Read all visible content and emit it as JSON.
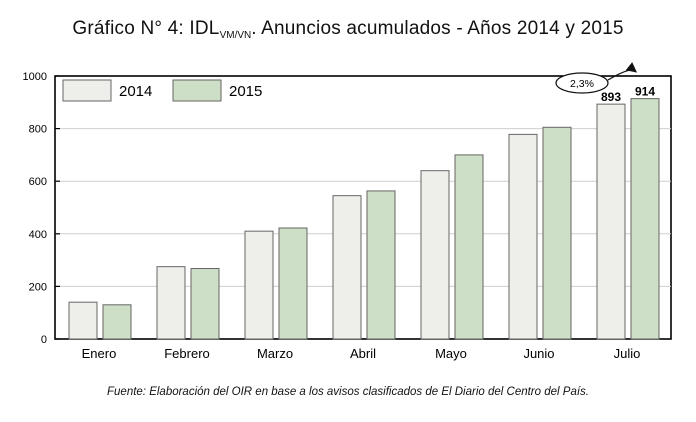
{
  "chart_data": {
    "type": "bar",
    "title": {
      "prefix": "Gráfico N° 4: IDL",
      "subscript": "VM/VN",
      "suffix": ". Anuncios acumulados - Años 2014 y 2015"
    },
    "categories": [
      "Enero",
      "Febrero",
      "Marzo",
      "Abril",
      "Mayo",
      "Junio",
      "Julio"
    ],
    "series": [
      {
        "name": "2014",
        "color": "#eeeeea",
        "values": [
          140,
          275,
          410,
          545,
          640,
          778,
          893
        ]
      },
      {
        "name": "2015",
        "color": "#cddfc6",
        "values": [
          130,
          268,
          422,
          563,
          700,
          805,
          914
        ]
      }
    ],
    "ylim": [
      0,
      1000
    ],
    "yticks": [
      0,
      200,
      400,
      600,
      800,
      1000
    ],
    "xlabel": "",
    "ylabel": "",
    "legend": "top-left",
    "data_labels": [
      {
        "category": "Julio",
        "series": "2014",
        "text": "893"
      },
      {
        "category": "Julio",
        "series": "2015",
        "text": "914"
      }
    ],
    "annotation": {
      "text": "2,3%",
      "category": "Julio"
    }
  },
  "source": "Fuente: Elaboración del OIR en base a los avisos clasificados de El Diario del Centro del País."
}
